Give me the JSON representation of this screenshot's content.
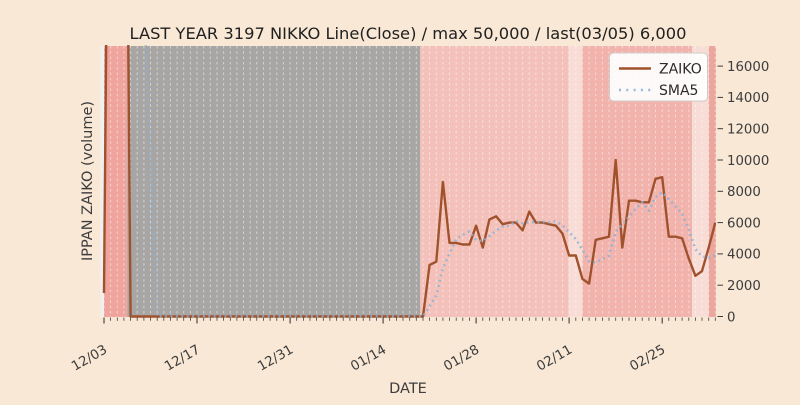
{
  "figure": {
    "title": "LAST YEAR 3197 NIKKO Line(Close) / max 50,000 / last(03/05) 6,000",
    "bg_color": "#f8e8d5",
    "plot_bg_color": "#f1efec"
  },
  "axes": {
    "xlabel": "DATE",
    "ylabel": "IPPAN ZAIKO (volume)"
  },
  "legend": {
    "items": [
      {
        "label": "ZAIKO",
        "style": "solid",
        "color": "#a0522d"
      },
      {
        "label": "SMA5",
        "style": "dotted",
        "color": "#8ab1d6"
      }
    ]
  },
  "chart_data": {
    "type": "line",
    "title": "LAST YEAR 3197 NIKKO Line(Close) / max 50,000 / last(03/05) 6,000",
    "xlabel": "DATE",
    "ylabel": "IPPAN ZAIKO (volume)",
    "ylim": [
      0,
      16000
    ],
    "y_ticks": [
      0,
      2000,
      4000,
      6000,
      8000,
      10000,
      12000,
      14000,
      16000
    ],
    "x_tick_labels": [
      "12/03",
      "12/17",
      "12/31",
      "01/14",
      "01/28",
      "02/11",
      "02/25"
    ],
    "x_tick_days": [
      0,
      14,
      28,
      42,
      56,
      70,
      84
    ],
    "x": [
      "12/03",
      "12/04",
      "12/05",
      "12/06",
      "12/07",
      "12/08",
      "12/09",
      "12/10",
      "12/11",
      "12/12",
      "12/13",
      "12/14",
      "12/15",
      "12/16",
      "12/17",
      "12/18",
      "12/19",
      "12/20",
      "12/21",
      "12/22",
      "12/23",
      "12/24",
      "12/25",
      "12/26",
      "12/27",
      "12/28",
      "12/29",
      "12/30",
      "12/31",
      "01/01",
      "01/02",
      "01/03",
      "01/04",
      "01/05",
      "01/06",
      "01/07",
      "01/08",
      "01/09",
      "01/10",
      "01/11",
      "01/12",
      "01/13",
      "01/14",
      "01/15",
      "01/16",
      "01/17",
      "01/18",
      "01/19",
      "01/20",
      "01/21",
      "01/22",
      "01/23",
      "01/24",
      "01/25",
      "01/26",
      "01/27",
      "01/28",
      "01/29",
      "01/30",
      "01/31",
      "02/01",
      "02/02",
      "02/03",
      "02/04",
      "02/05",
      "02/06",
      "02/07",
      "02/08",
      "02/09",
      "02/10",
      "02/11",
      "02/12",
      "02/13",
      "02/14",
      "02/15",
      "02/16",
      "02/17",
      "02/18",
      "02/19",
      "02/20",
      "02/21",
      "02/22",
      "02/23",
      "02/24",
      "02/25",
      "02/26",
      "02/27",
      "02/28",
      "03/01",
      "03/02",
      "03/03",
      "03/04",
      "03/05"
    ],
    "series": [
      {
        "name": "ZAIKO",
        "color": "#a0522d",
        "style": "solid",
        "values": [
          1500,
          50000,
          50000,
          50000,
          0,
          0,
          0,
          0,
          0,
          0,
          0,
          0,
          0,
          0,
          0,
          0,
          0,
          0,
          0,
          0,
          0,
          0,
          0,
          0,
          0,
          0,
          0,
          0,
          0,
          0,
          0,
          0,
          0,
          0,
          0,
          0,
          0,
          0,
          0,
          0,
          0,
          0,
          0,
          0,
          0,
          0,
          0,
          0,
          0,
          3300,
          3500,
          8600,
          4700,
          4700,
          4600,
          4600,
          5800,
          4400,
          6200,
          6400,
          5900,
          6000,
          6000,
          5500,
          6700,
          6000,
          6000,
          5900,
          5800,
          5300,
          3900,
          3900,
          2400,
          2100,
          4900,
          5000,
          5100,
          10000,
          4400,
          7400,
          7400,
          7300,
          7300,
          8800,
          8900,
          5100,
          5100,
          5000,
          3700,
          2600,
          2900,
          4400,
          6000
        ]
      },
      {
        "name": "SMA5",
        "color": "#8ab1d6",
        "style": "dotted",
        "values": [
          null,
          null,
          null,
          null,
          30300,
          30000,
          20000,
          10000,
          0,
          0,
          0,
          0,
          0,
          0,
          0,
          0,
          0,
          0,
          0,
          0,
          0,
          0,
          0,
          0,
          0,
          0,
          0,
          0,
          0,
          0,
          0,
          0,
          0,
          0,
          0,
          0,
          0,
          0,
          0,
          0,
          0,
          0,
          0,
          0,
          0,
          0,
          0,
          0,
          0,
          660,
          1360,
          3080,
          4020,
          4960,
          5220,
          5440,
          4880,
          4820,
          5120,
          5480,
          5740,
          5780,
          6100,
          5960,
          6020,
          6040,
          6040,
          6020,
          6080,
          5800,
          5380,
          4960,
          4260,
          3520,
          3440,
          3660,
          3900,
          5420,
          5880,
          6380,
          6860,
          7300,
          6760,
          7640,
          7940,
          7480,
          7040,
          6580,
          5560,
          4300,
          3860,
          3720,
          3920
        ]
      }
    ],
    "bands": [
      {
        "from_day": 0,
        "to_day": 3.5,
        "color": "#efa49e",
        "label": "dark-pink-dec"
      },
      {
        "from_day": 3.5,
        "to_day": 47.6,
        "color": "#a8a6a4",
        "label": "gray-zero-period"
      },
      {
        "from_day": 47.6,
        "to_day": 69.9,
        "color": "#f3c1ba",
        "label": "pink-jan"
      },
      {
        "from_day": 69.9,
        "to_day": 72.0,
        "color": "#f8dcd6",
        "label": "light-pink-feb11"
      },
      {
        "from_day": 72.0,
        "to_day": 88.5,
        "color": "#f1b3ac",
        "label": "pink-feb"
      },
      {
        "from_day": 88.5,
        "to_day": 91.0,
        "color": "#f8dcd6",
        "label": "light-pink-mar01"
      },
      {
        "from_day": 91.0,
        "to_day": 92.2,
        "color": "#eba69e",
        "label": "dark-pink-mar"
      }
    ],
    "grid": {
      "vertical_daily": true,
      "color": "#ffffff",
      "dash": true,
      "horizontal": false
    },
    "legend_position": "upper right"
  }
}
